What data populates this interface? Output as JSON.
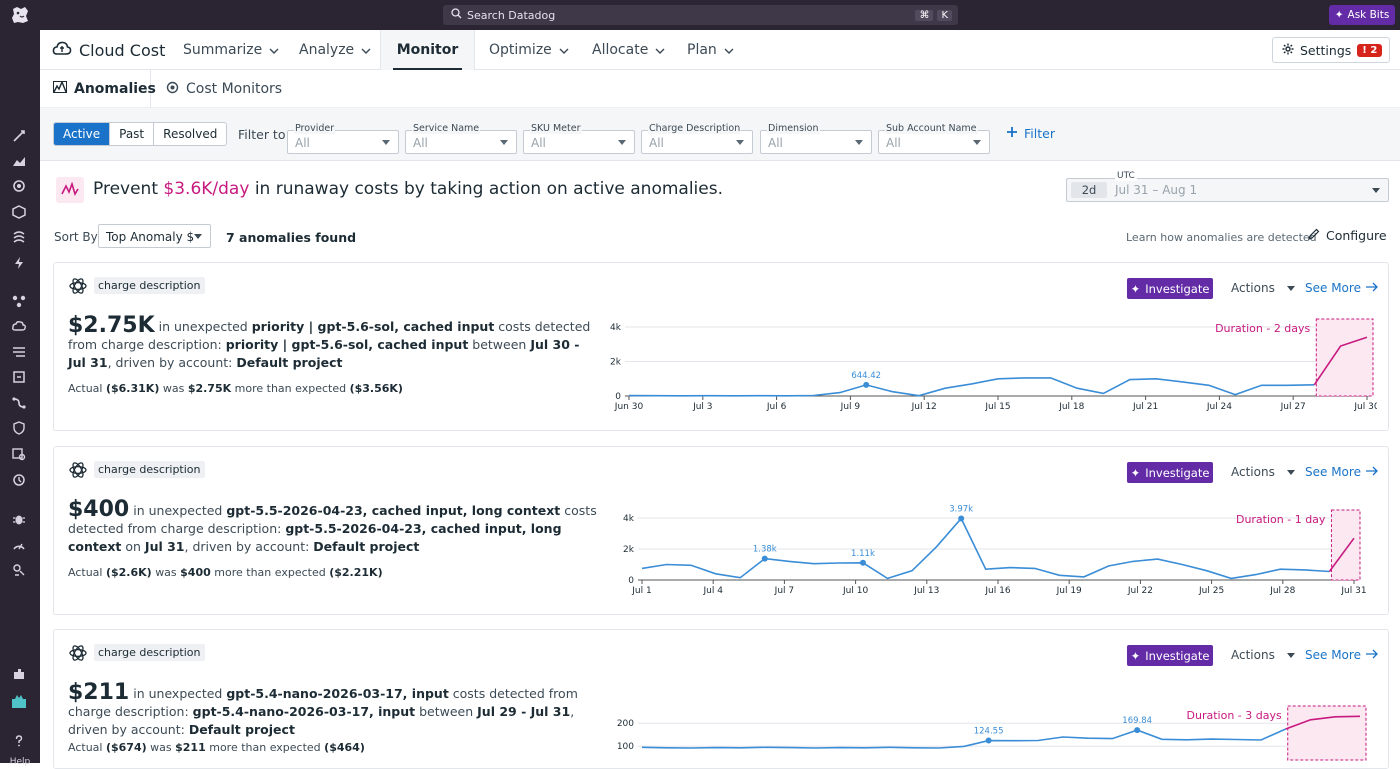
{
  "topbar": {
    "search_placeholder": "Search Datadog",
    "shortcut_keys": [
      "⌘",
      "K"
    ],
    "ask_bits_label": "Ask Bits"
  },
  "sidebar": {
    "help_label": "Help"
  },
  "nav": {
    "brand": "Cloud Cost",
    "tabs": [
      {
        "label": "Summarize",
        "has_menu": true
      },
      {
        "label": "Analyze",
        "has_menu": true
      },
      {
        "label": "Monitor",
        "has_menu": false,
        "active": true
      },
      {
        "label": "Optimize",
        "has_menu": true
      },
      {
        "label": "Allocate",
        "has_menu": true
      },
      {
        "label": "Plan",
        "has_menu": true
      }
    ],
    "settings_label": "Settings",
    "settings_alert_count": "2"
  },
  "subnav": {
    "tabs": [
      {
        "label": "Anomalies",
        "active": true
      },
      {
        "label": "Cost Monitors",
        "active": false
      }
    ]
  },
  "filters": {
    "status_options": [
      "Active",
      "Past",
      "Resolved"
    ],
    "status_selected": "Active",
    "filter_to_label": "Filter to",
    "dropdowns": [
      {
        "label": "Provider",
        "value": "All"
      },
      {
        "label": "Service Name",
        "value": "All"
      },
      {
        "label": "SKU Meter",
        "value": "All"
      },
      {
        "label": "Charge Description",
        "value": "All"
      },
      {
        "label": "Dimension",
        "value": "All"
      },
      {
        "label": "Sub Account Name",
        "value": "All"
      }
    ],
    "add_filter_label": "Filter"
  },
  "banner": {
    "prefix": "Prevent",
    "amount": "$3.6K/day",
    "suffix": "in runaway costs by taking action on active anomalies."
  },
  "timeframe": {
    "tz_label": "UTC",
    "span": "2d",
    "range": "Jul 31 – Aug 1"
  },
  "sort": {
    "label": "Sort By",
    "value": "Top Anomaly $",
    "found": "7 anomalies found"
  },
  "learn_link": "Learn how anomalies are detected",
  "configure_label": "Configure",
  "card_common": {
    "tag": "charge description",
    "investigate": "Investigate",
    "actions": "Actions",
    "see_more": "See More"
  },
  "accent_color": "#c7197f",
  "series_color": "#3a8dd6",
  "anomalies": [
    {
      "amount": "$2.75K",
      "desc_parts": [
        "in unexpected ",
        "priority | gpt-5.6-sol, cached input",
        " costs detected from charge description: ",
        "priority | gpt-5.6-sol, cached input",
        " between ",
        "Jul 30 - Jul 31",
        ", driven by account: ",
        "Default project"
      ],
      "actual": "Actual",
      "actual_val": "($6.31K)",
      "was": "was",
      "delta": "$2.75K",
      "more": "more than expected",
      "expected": "($3.56K)",
      "chart_data": {
        "type": "line",
        "x_ticks": [
          "Jun 30",
          "Jul 3",
          "Jul 6",
          "Jul 9",
          "Jul 12",
          "Jul 15",
          "Jul 18",
          "Jul 21",
          "Jul 24",
          "Jul 27",
          "Jul 30"
        ],
        "y_ticks": [
          "0",
          "2k",
          "4k"
        ],
        "ylim": [
          0,
          4000
        ],
        "values": [
          30,
          20,
          10,
          20,
          10,
          20,
          10,
          30,
          200,
          644.42,
          250,
          20,
          450,
          700,
          1000,
          1050,
          1050,
          450,
          150,
          950,
          1000,
          820,
          620,
          80,
          620,
          620,
          650,
          2900,
          3400
        ],
        "peak_labels": [
          {
            "index": 9,
            "text": "644.42"
          }
        ],
        "duration_label": "Duration - 2 days",
        "anomaly_points": 2
      }
    },
    {
      "amount": "$400",
      "desc_parts": [
        "in unexpected ",
        "gpt-5.5-2026-04-23, cached input, long context",
        " costs detected from charge description: ",
        "gpt-5.5-2026-04-23, cached input, long context",
        " on ",
        "Jul 31",
        ", driven by account: ",
        "Default project"
      ],
      "actual": "Actual",
      "actual_val": "($2.6K)",
      "was": "was",
      "delta": "$400",
      "more": "more than expected",
      "expected": "($2.21K)",
      "chart_data": {
        "type": "line",
        "x_ticks": [
          "Jul 1",
          "Jul 4",
          "Jul 7",
          "Jul 10",
          "Jul 13",
          "Jul 16",
          "Jul 19",
          "Jul 22",
          "Jul 25",
          "Jul 28",
          "Jul 31"
        ],
        "y_ticks": [
          "0",
          "2k",
          "4k"
        ],
        "ylim": [
          0,
          4000
        ],
        "values": [
          750,
          1000,
          950,
          400,
          150,
          1380,
          1200,
          1050,
          1100,
          1110,
          100,
          600,
          2150,
          3970,
          700,
          800,
          750,
          300,
          200,
          900,
          1200,
          1350,
          1000,
          600,
          100,
          350,
          700,
          650,
          550,
          2700
        ],
        "peak_labels": [
          {
            "index": 5,
            "text": "1.38k"
          },
          {
            "index": 9,
            "text": "1.11k"
          },
          {
            "index": 13,
            "text": "3.97k"
          }
        ],
        "duration_label": "Duration - 1 day",
        "anomaly_points": 1
      }
    },
    {
      "amount": "$211",
      "desc_parts": [
        "in unexpected ",
        "gpt-5.4-nano-2026-03-17, input",
        " costs detected from charge description: ",
        "gpt-5.4-nano-2026-03-17, input",
        " between ",
        "Jul 29 - Jul 31",
        ", driven by account: ",
        "Default project"
      ],
      "actual": "Actual",
      "actual_val": "($674)",
      "was": "was",
      "delta": "$211",
      "more": "more than expected",
      "expected": "($464)",
      "chart_data": {
        "type": "line",
        "x_ticks": [],
        "y_ticks": [
          "100",
          "200"
        ],
        "ylim": [
          40,
          240
        ],
        "values": [
          95,
          93,
          92,
          94,
          93,
          95,
          94,
          92,
          94,
          93,
          95,
          93,
          92,
          99,
          124.55,
          124,
          125,
          140,
          135,
          133,
          169.84,
          130,
          128,
          131,
          129,
          127,
          175,
          215,
          228,
          230
        ],
        "peak_labels": [
          {
            "index": 14,
            "text": "124.55"
          },
          {
            "index": 20,
            "text": "169.84"
          }
        ],
        "duration_label": "Duration - 3 days",
        "anomaly_points": 3
      }
    }
  ]
}
